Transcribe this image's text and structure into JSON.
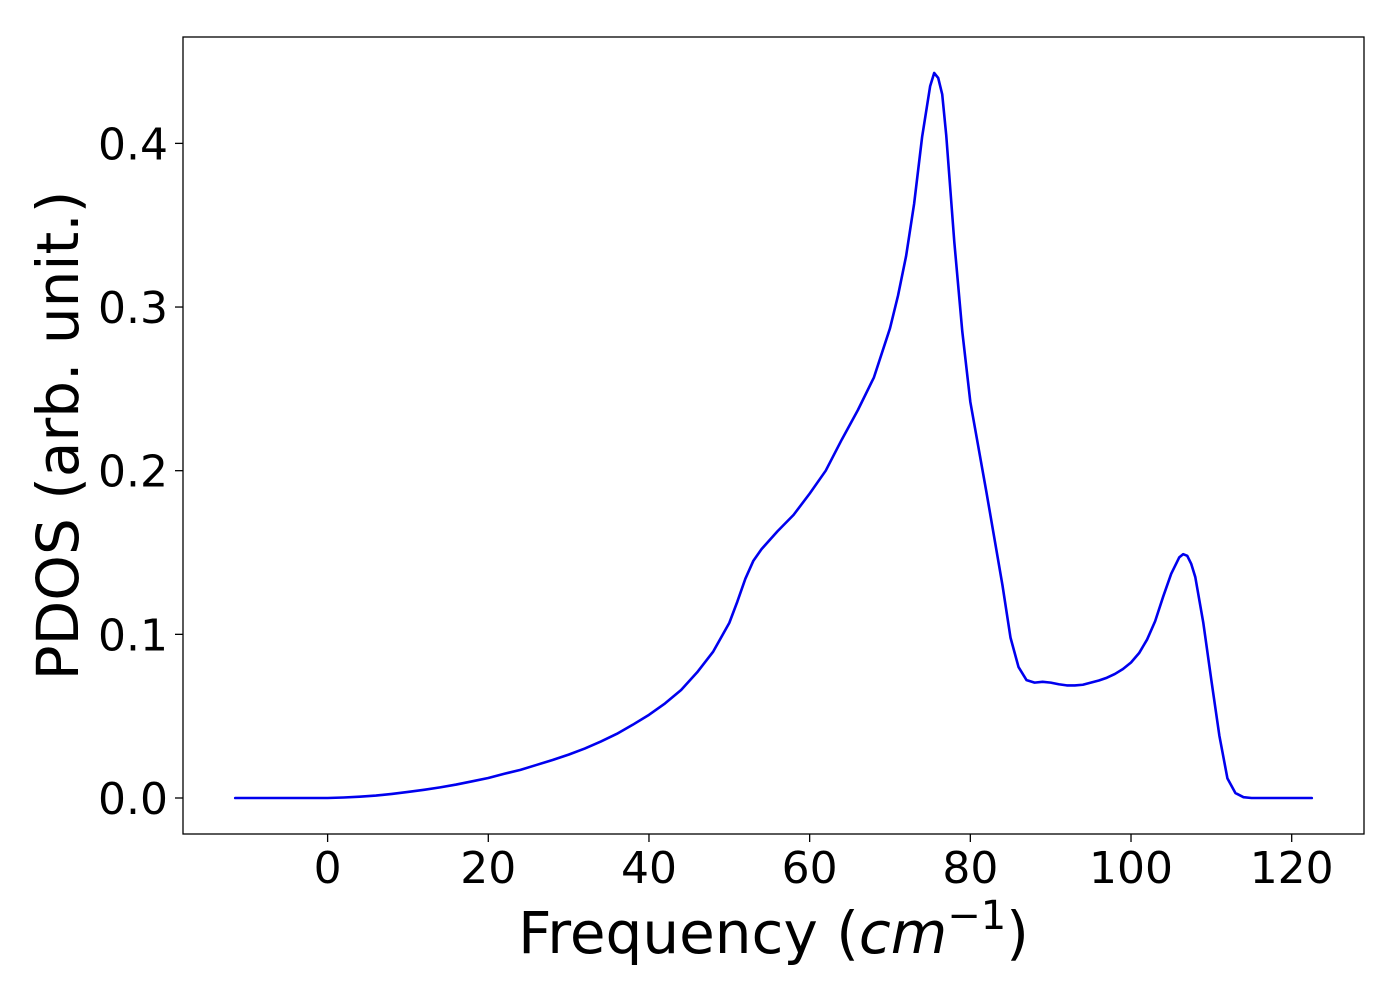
{
  "chart_data": {
    "type": "line",
    "title": "",
    "xlabel": "Frequency",
    "xlabel_unit_base": "cm",
    "xlabel_unit_exp": "−1",
    "ylabel": "PDOS (arb. unit.)",
    "xlim": [
      -18,
      129
    ],
    "ylim": [
      -0.022,
      0.465
    ],
    "xticks": [
      0,
      20,
      40,
      60,
      80,
      100,
      120
    ],
    "yticks": [
      0.0,
      0.1,
      0.2,
      0.3,
      0.4
    ],
    "ytick_labels": [
      "0.0",
      "0.1",
      "0.2",
      "0.3",
      "0.4"
    ],
    "grid": false,
    "legend": "none",
    "series": [
      {
        "color": "#0000ee",
        "x": [
          -11.5,
          -5,
          0,
          2,
          4,
          6,
          8,
          10,
          12,
          14,
          16,
          18,
          20,
          22,
          24,
          26,
          28,
          30,
          32,
          34,
          36,
          38,
          40,
          42,
          44,
          46,
          48,
          50,
          51,
          52,
          53,
          54,
          56,
          58,
          60,
          62,
          64,
          66,
          68,
          70,
          71,
          72,
          73,
          74,
          75,
          75.5,
          76,
          76.5,
          77,
          78,
          79,
          80,
          82,
          84,
          85,
          86,
          87,
          88,
          89,
          90,
          91,
          92,
          93,
          94,
          95,
          96,
          97,
          98,
          99,
          100,
          101,
          102,
          103,
          104,
          105,
          106,
          106.5,
          107,
          107.5,
          108,
          109,
          110,
          111,
          112,
          113,
          114,
          115,
          117,
          120,
          122.5
        ],
        "y": [
          0.0,
          0.0,
          0.0,
          0.0003,
          0.0008,
          0.0015,
          0.0025,
          0.0037,
          0.005,
          0.0065,
          0.0082,
          0.0102,
          0.0122,
          0.0148,
          0.0172,
          0.0202,
          0.0232,
          0.0265,
          0.0302,
          0.0345,
          0.0392,
          0.0448,
          0.0508,
          0.0578,
          0.066,
          0.0768,
          0.0895,
          0.107,
          0.12,
          0.134,
          0.145,
          0.152,
          0.163,
          0.173,
          0.186,
          0.2,
          0.219,
          0.237,
          0.257,
          0.287,
          0.307,
          0.331,
          0.363,
          0.404,
          0.435,
          0.443,
          0.44,
          0.43,
          0.405,
          0.34,
          0.285,
          0.242,
          0.187,
          0.13,
          0.098,
          0.08,
          0.072,
          0.0705,
          0.071,
          0.0705,
          0.0695,
          0.0688,
          0.0688,
          0.0692,
          0.0705,
          0.0718,
          0.0735,
          0.0758,
          0.0788,
          0.0828,
          0.0885,
          0.0968,
          0.108,
          0.123,
          0.137,
          0.147,
          0.149,
          0.148,
          0.143,
          0.135,
          0.107,
          0.072,
          0.038,
          0.012,
          0.003,
          0.0005,
          0.0,
          0.0,
          0.0,
          0.0
        ]
      }
    ]
  }
}
